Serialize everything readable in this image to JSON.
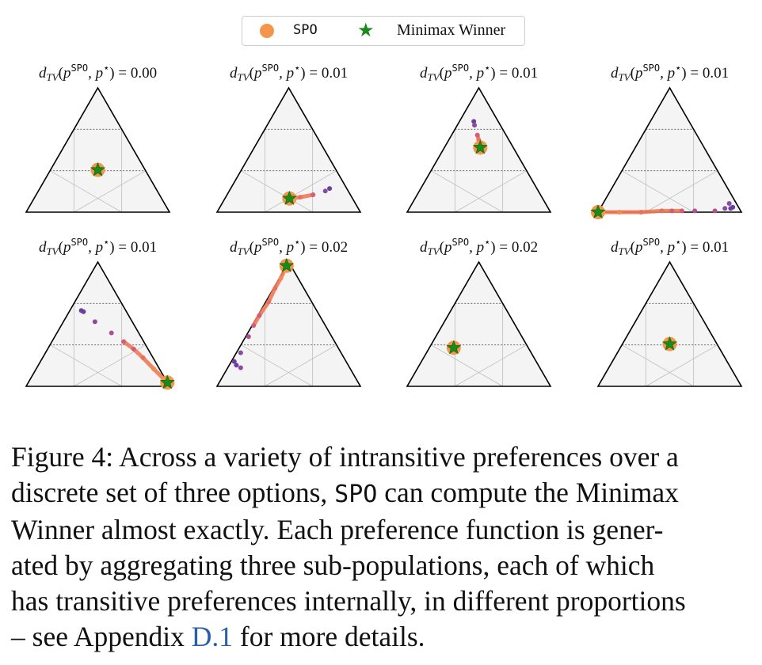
{
  "legend": {
    "spo_label": "SPO",
    "minimax_label": "Minimax Winner",
    "spo_color": "#f4964a",
    "minimax_color": "#1a8a1a"
  },
  "title_template": {
    "prefix": "d",
    "subscript": "TV",
    "superscript": "SPO",
    "middle": ", p",
    "star": "⋆",
    "equals": ") = "
  },
  "chart_data": {
    "type": "scatter",
    "coordinate_system": "ternary barycentric (a=left vertex, b=right vertex, c=top vertex)",
    "grid": true,
    "panels": [
      {
        "dtv": "0.00",
        "winner": [
          0.33,
          0.33,
          0.34
        ],
        "trajectory": [
          [
            0.33,
            0.33,
            0.34
          ]
        ]
      },
      {
        "dtv": "0.01",
        "winner": [
          0.44,
          0.45,
          0.11
        ],
        "trajectory": [
          [
            0.12,
            0.69,
            0.19
          ],
          [
            0.16,
            0.67,
            0.17
          ],
          [
            0.26,
            0.6,
            0.14
          ],
          [
            0.36,
            0.52,
            0.12
          ],
          [
            0.44,
            0.45,
            0.11
          ]
        ]
      },
      {
        "dtv": "0.01",
        "winner": [
          0.23,
          0.25,
          0.52
        ],
        "trajectory": [
          [
            0.17,
            0.1,
            0.73
          ],
          [
            0.18,
            0.12,
            0.7
          ],
          [
            0.2,
            0.18,
            0.62
          ],
          [
            0.21,
            0.21,
            0.58
          ],
          [
            0.23,
            0.25,
            0.52
          ]
        ]
      },
      {
        "dtv": "0.01",
        "winner": [
          1.0,
          0.0,
          0.0
        ],
        "trajectory": [
          [
            0.04,
            0.92,
            0.04
          ],
          [
            0.06,
            0.91,
            0.03
          ],
          [
            0.05,
            0.88,
            0.07
          ],
          [
            0.1,
            0.87,
            0.03
          ],
          [
            0.18,
            0.81,
            0.01
          ],
          [
            0.32,
            0.67,
            0.01
          ],
          [
            0.41,
            0.58,
            0.01
          ],
          [
            0.48,
            0.51,
            0.01
          ],
          [
            0.55,
            0.44,
            0.01
          ],
          [
            0.7,
            0.3,
            0.0
          ],
          [
            0.85,
            0.15,
            0.0
          ],
          [
            1.0,
            0.0,
            0.0
          ]
        ]
      },
      {
        "dtv": "0.01",
        "winner": [
          0.0,
          0.97,
          0.03
        ],
        "trajectory": [
          [
            0.3,
            0.1,
            0.6
          ],
          [
            0.31,
            0.08,
            0.61
          ],
          [
            0.26,
            0.22,
            0.52
          ],
          [
            0.19,
            0.38,
            0.43
          ],
          [
            0.14,
            0.5,
            0.36
          ],
          [
            0.1,
            0.6,
            0.3
          ],
          [
            0.07,
            0.7,
            0.23
          ],
          [
            0.04,
            0.82,
            0.14
          ],
          [
            0.0,
            0.97,
            0.03
          ]
        ]
      },
      {
        "dtv": "0.02",
        "winner": [
          0.03,
          0.0,
          0.97
        ],
        "trajectory": [
          [
            0.78,
            0.02,
            0.2
          ],
          [
            0.78,
            0.05,
            0.17
          ],
          [
            0.76,
            0.09,
            0.15
          ],
          [
            0.7,
            0.03,
            0.27
          ],
          [
            0.58,
            0.02,
            0.4
          ],
          [
            0.5,
            0.01,
            0.49
          ],
          [
            0.42,
            0.01,
            0.57
          ],
          [
            0.3,
            0.02,
            0.68
          ],
          [
            0.2,
            0.01,
            0.79
          ],
          [
            0.12,
            0.01,
            0.87
          ],
          [
            0.03,
            0.0,
            0.97
          ]
        ]
      },
      {
        "dtv": "0.02",
        "winner": [
          0.52,
          0.17,
          0.31
        ],
        "trajectory": [
          [
            0.52,
            0.17,
            0.31
          ]
        ]
      },
      {
        "dtv": "0.01",
        "winner": [
          0.33,
          0.33,
          0.34
        ],
        "trajectory": [
          [
            0.33,
            0.33,
            0.34
          ]
        ]
      }
    ]
  },
  "caption": {
    "lines": [
      [
        "Figure 4: Across a variety of intransitive preferences over a"
      ],
      [
        "discrete set of three options, ",
        "SPO",
        " can compute the Minimax"
      ],
      [
        "Winner almost exactly. Each preference function is gener-"
      ],
      [
        "ated by aggregating three sub-populations, each of which"
      ],
      [
        "has transitive preferences internally, in different proportions"
      ],
      [
        "– see Appendix ",
        "D.1",
        " for more details."
      ]
    ]
  }
}
